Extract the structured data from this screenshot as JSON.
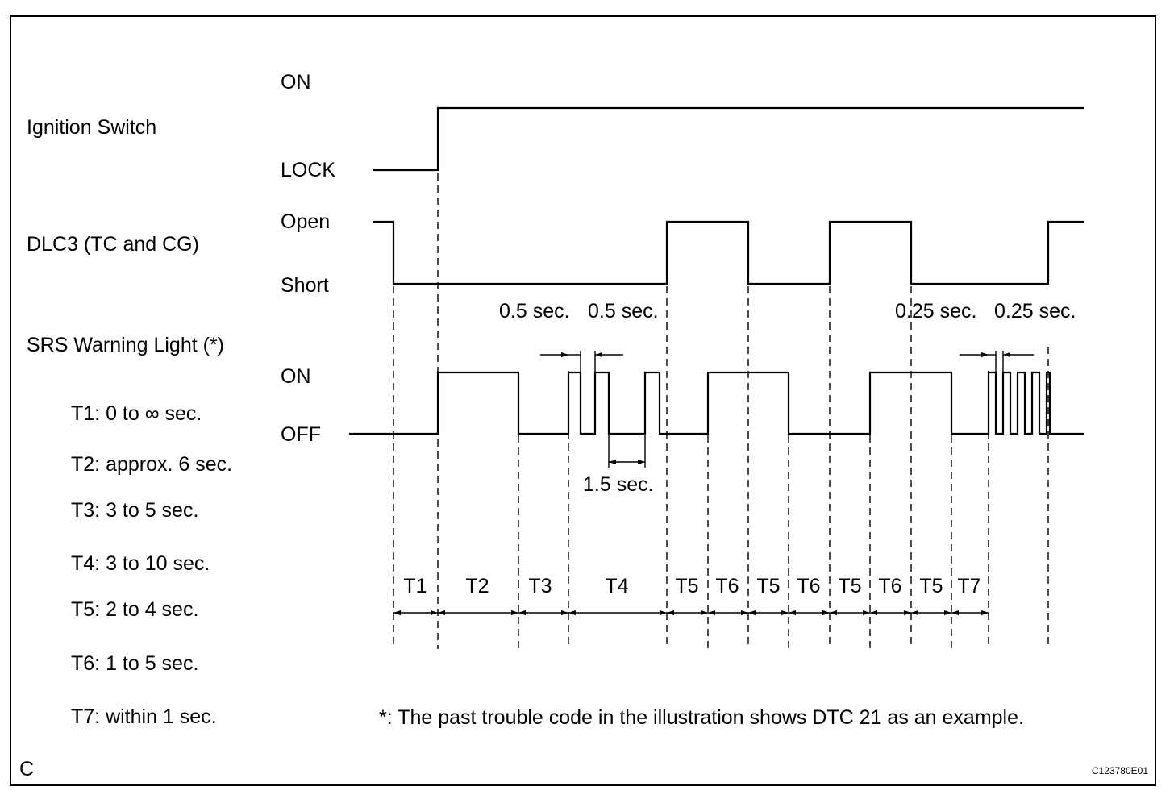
{
  "signals": {
    "ignition": {
      "label": "Ignition Switch",
      "high": "ON",
      "low": "LOCK"
    },
    "dlc3": {
      "label": "DLC3 (TC and CG)",
      "high": "Open",
      "low": "Short"
    },
    "srs": {
      "label": "SRS Warning Light (*)",
      "high": "ON",
      "low": "OFF"
    }
  },
  "timing_definitions": [
    "T1: 0 to ∞ sec.",
    "T2: approx. 6 sec.",
    "T3: 3 to 5 sec.",
    "T4: 3 to 10 sec.",
    "T5: 2 to 4 sec.",
    "T6: 1 to 5 sec.",
    "T7: within 1 sec."
  ],
  "pulse_annotations": {
    "slow_on": "0.5 sec.",
    "slow_off": "0.5 sec.",
    "slow_gap": "1.5 sec.",
    "fast_on": "0.25 sec.",
    "fast_off": "0.25 sec."
  },
  "periods": [
    "T1",
    "T2",
    "T3",
    "T4",
    "T5",
    "T6",
    "T5",
    "T6",
    "T5",
    "T6",
    "T5",
    "T7"
  ],
  "footnote": "*: The past trouble code in the illustration shows DTC 21 as an example.",
  "corner_letter": "C",
  "figure_id": "C123780E01"
}
